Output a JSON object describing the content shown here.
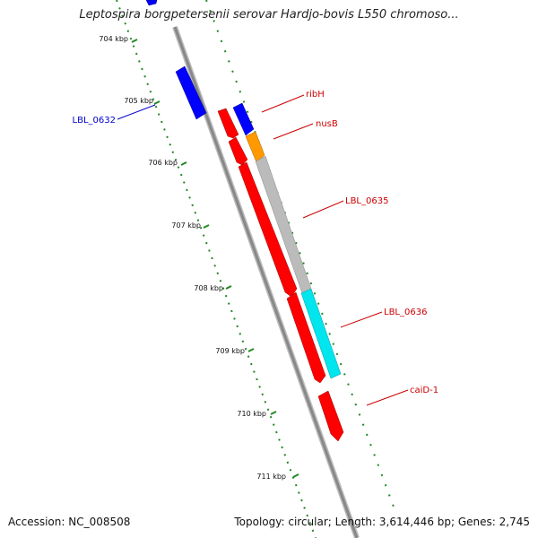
{
  "title": "Leptospira borgpetersenii serovar Hardjo-bovis L550 chromoso...",
  "ticks": [
    "704 kbp",
    "705 kbp",
    "706 kbp",
    "707 kbp",
    "708 kbp",
    "709 kbp",
    "710 kbp",
    "711 kbp"
  ],
  "genes": [
    {
      "name": "LBL_0632",
      "color": "#0000ff"
    },
    {
      "name": "ribH",
      "color": "#0000ff"
    },
    {
      "name": "nusB",
      "color": "#ff9900"
    },
    {
      "name": "LBL_0635",
      "color": "#bbbbbb"
    },
    {
      "name": "LBL_0636",
      "color": "#00e5ee"
    },
    {
      "name": "caiD-1",
      "color": "#ff0000"
    }
  ],
  "colors": {
    "backbone": "#888888",
    "forward_ruler": "#228822",
    "reverse_gene": "#ff0000",
    "label_forward": "#cc0000",
    "label_reverse": "#0000cc"
  },
  "footer": {
    "accession": "Accession: NC_008508",
    "stats": "Topology: circular; Length: 3,614,446 bp; Genes: 2,745"
  }
}
